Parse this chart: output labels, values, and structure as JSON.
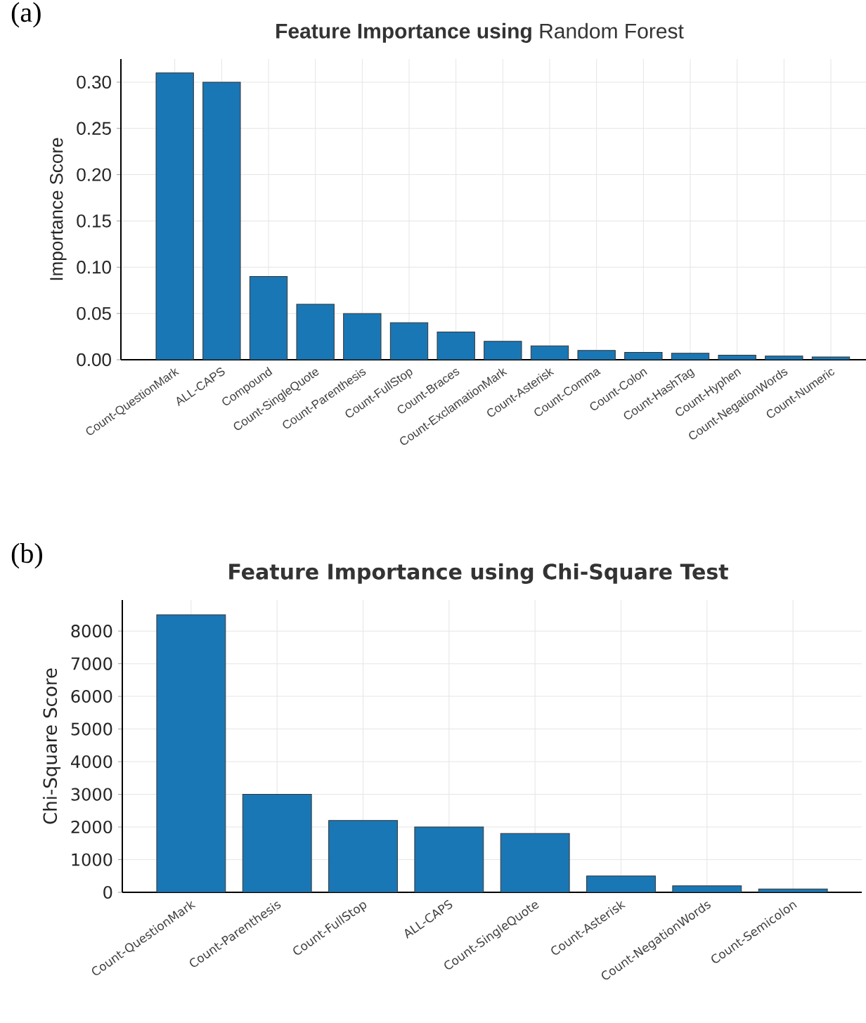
{
  "chart_data": [
    {
      "type": "bar",
      "title": "**Feature Importance using** Random Forest",
      "ylabel": "Importance Score",
      "annotations": [
        "(a)"
      ],
      "categories": [
        "Count-QuestionMark",
        "ALL-CAPS",
        "Compound",
        "Count-SingleQuote",
        "Count-Parenthesis",
        "Count-FullStop",
        "Count-Braces",
        "Count-ExclamationMark",
        "Count-Asterisk",
        "Count-Comma",
        "Count-Colon",
        "Count-HashTag",
        "Count-Hyphen",
        "Count-NegationWords",
        "Count-Numeric"
      ],
      "values": [
        0.31,
        0.3,
        0.09,
        0.06,
        0.05,
        0.04,
        0.03,
        0.02,
        0.015,
        0.01,
        0.008,
        0.007,
        0.005,
        0.004,
        0.003
      ],
      "color": "#1a77b5",
      "ylim": [
        0,
        0.325
      ],
      "yticks": [
        {
          "value": 0,
          "label": "0.00"
        },
        {
          "value": 0.05,
          "label": "0.05"
        },
        {
          "value": 0.1,
          "label": "0.10"
        },
        {
          "value": 0.15,
          "label": "0.15"
        },
        {
          "value": 0.2,
          "label": "0.20"
        },
        {
          "value": 0.25,
          "label": "0.25"
        },
        {
          "value": 0.3,
          "label": "0.30"
        }
      ],
      "grid": true
    },
    {
      "type": "bar",
      "title": "Feature Importance using Chi-Square Test",
      "ylabel": "Chi-Square Score",
      "annotations": [
        "(b)"
      ],
      "categories": [
        "Count-QuestionMark",
        "Count-Parenthesis",
        "Count-FullStop",
        "ALL-CAPS",
        "Count-SingleQuote",
        "Count-Asterisk",
        "Count-NegationWords",
        "Count-Semicolon"
      ],
      "values": [
        8500,
        3000,
        2200,
        2000,
        1800,
        500,
        200,
        100
      ],
      "color": "#1a77b5",
      "ylim": [
        0,
        8950
      ],
      "yticks": [
        0,
        1000,
        2000,
        3000,
        4000,
        5000,
        6000,
        7000,
        8000
      ],
      "grid": true
    }
  ]
}
